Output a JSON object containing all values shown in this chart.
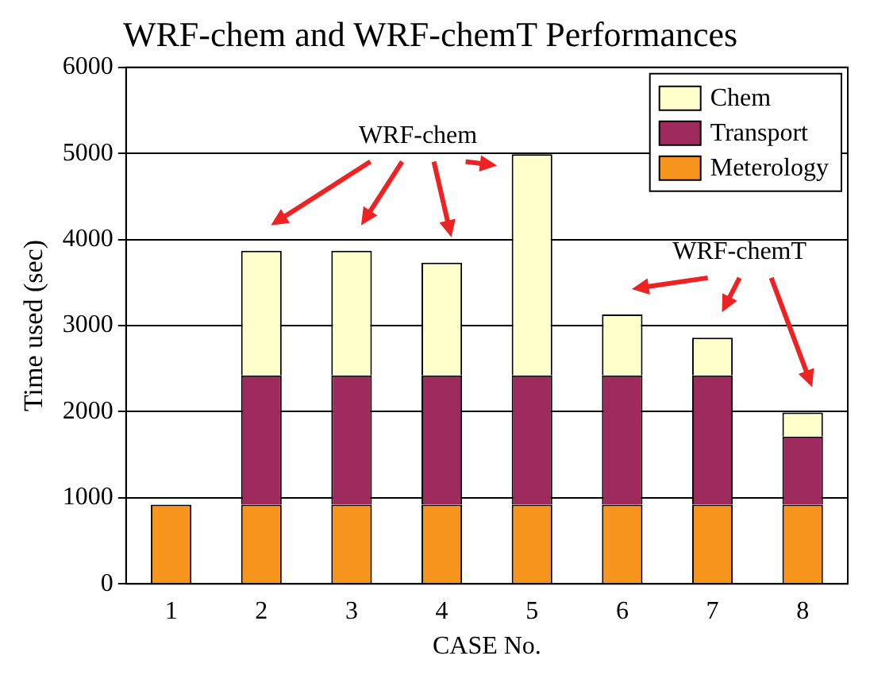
{
  "chart_data": {
    "type": "bar",
    "title": "WRF-chem and WRF-chemT Performances",
    "xlabel": "CASE No.",
    "ylabel": "Time used (sec)",
    "categories": [
      "1",
      "2",
      "3",
      "4",
      "5",
      "6",
      "7",
      "8"
    ],
    "stacked": true,
    "series": [
      {
        "name": "Meterology",
        "color": "#f7941d",
        "values": [
          920,
          920,
          920,
          920,
          920,
          920,
          920,
          920
        ]
      },
      {
        "name": "Transport",
        "color": "#9e2a5e",
        "values": [
          0,
          1500,
          1500,
          1500,
          1500,
          1500,
          1500,
          790
        ]
      },
      {
        "name": "Chem",
        "color": "#ffffcc",
        "values": [
          0,
          1450,
          1450,
          1310,
          2570,
          710,
          440,
          280
        ]
      }
    ],
    "ylim": [
      0,
      6000
    ],
    "yticks": [
      0,
      1000,
      2000,
      3000,
      4000,
      5000,
      6000
    ],
    "grid": "y",
    "legend": "top right",
    "annotations": [
      "WRF-chem",
      "WRF-chemT"
    ]
  }
}
